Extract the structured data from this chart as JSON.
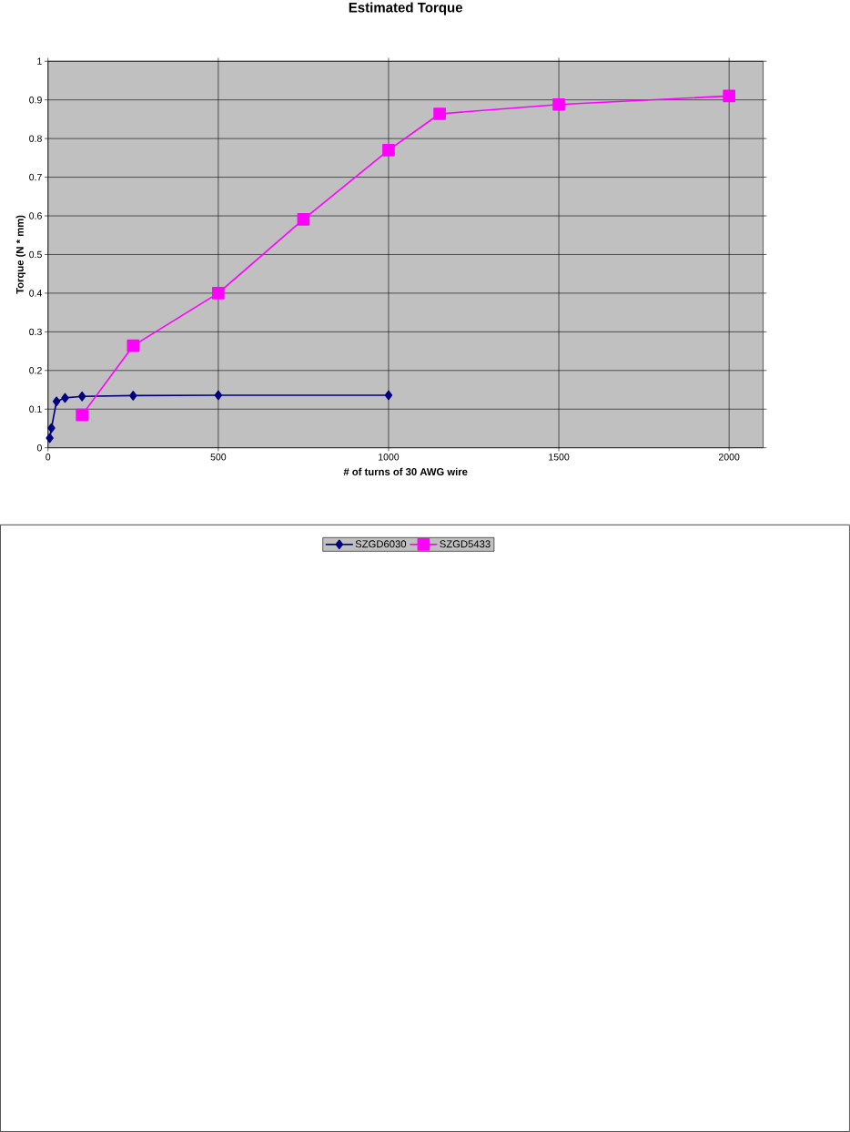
{
  "chart_data": {
    "type": "line",
    "title": "Estimated Torque",
    "xlabel": "# of turns of 30 AWG wire",
    "ylabel": "Torque (N * mm)",
    "xlim": [
      0,
      2100
    ],
    "xticks": [
      0,
      500,
      1000,
      1500,
      2000
    ],
    "ylim": [
      0,
      1
    ],
    "yticks": [
      0,
      0.1,
      0.2,
      0.3,
      0.4,
      0.5,
      0.6,
      0.7,
      0.8,
      0.9,
      1
    ],
    "grid": true,
    "legend": "bottom",
    "line_style": "solid",
    "series": [
      {
        "name": "SZGD6030",
        "color": "#000080",
        "marker": "diamond",
        "x": [
          5,
          10,
          25,
          50,
          100,
          250,
          500,
          1000
        ],
        "values": [
          0.025,
          0.051,
          0.12,
          0.129,
          0.133,
          0.135,
          0.136,
          0.136
        ]
      },
      {
        "name": "SZGD5433",
        "color": "#ff00ff",
        "marker": "square",
        "x": [
          100,
          250,
          500,
          750,
          1000,
          1150,
          1500,
          2000
        ],
        "values": [
          0.085,
          0.264,
          0.4,
          0.591,
          0.77,
          0.864,
          0.888,
          0.91
        ]
      }
    ]
  }
}
